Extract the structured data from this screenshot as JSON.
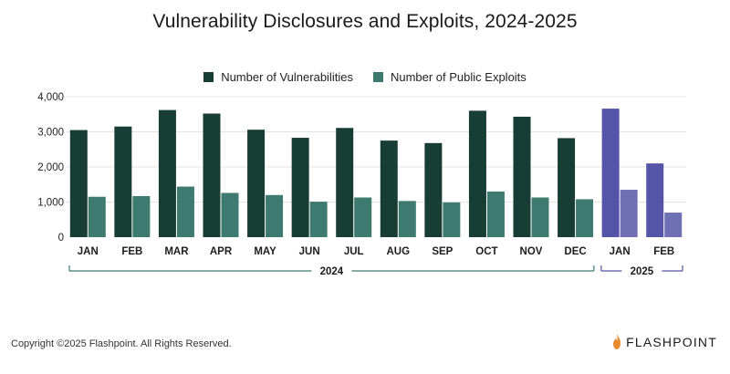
{
  "title": "Vulnerability Disclosures and Exploits, 2024-2025",
  "legend": [
    {
      "label": "Number of Vulnerabilities",
      "color": "#183d35"
    },
    {
      "label": "Number of Public Exploits",
      "color": "#3d7a70"
    }
  ],
  "footer": {
    "copyright": "Copyright ©2025 Flashpoint. All Rights Reserved.",
    "logo_text": "FLASHPOINT"
  },
  "colors": {
    "vuln_2024": "#183d35",
    "exploit_2024": "#3d7a70",
    "vuln_2025": "#5454a8",
    "exploit_2025": "#6e70b3",
    "bracket_2024": "#3d7a70",
    "bracket_2025": "#5454a8",
    "grid": "#e4e4e4",
    "logo_flame": "#e88a2d"
  },
  "chart_data": {
    "type": "bar",
    "title": "Vulnerability Disclosures and Exploits, 2024-2025",
    "categories": [
      "JAN",
      "FEB",
      "MAR",
      "APR",
      "MAY",
      "JUN",
      "JUL",
      "AUG",
      "SEP",
      "OCT",
      "NOV",
      "DEC",
      "JAN",
      "FEB"
    ],
    "groups": [
      {
        "label": "2024",
        "start": 0,
        "end": 11
      },
      {
        "label": "2025",
        "start": 12,
        "end": 13
      }
    ],
    "series": [
      {
        "name": "Number of Vulnerabilities",
        "values": [
          3050,
          3150,
          3620,
          3520,
          3060,
          2830,
          3110,
          2750,
          2680,
          3600,
          3430,
          2820,
          3660,
          2100
        ]
      },
      {
        "name": "Number of Public Exploits",
        "values": [
          1150,
          1170,
          1440,
          1260,
          1200,
          1010,
          1130,
          1030,
          990,
          1300,
          1130,
          1080,
          1350,
          700
        ]
      }
    ],
    "yticks": [
      "4,000",
      "3,000",
      "2,000",
      "1,000",
      "0"
    ],
    "ytick_values": [
      4000,
      3000,
      2000,
      1000,
      0
    ],
    "ylim": [
      0,
      4000
    ],
    "grid": true,
    "legend_position": "top-center"
  }
}
